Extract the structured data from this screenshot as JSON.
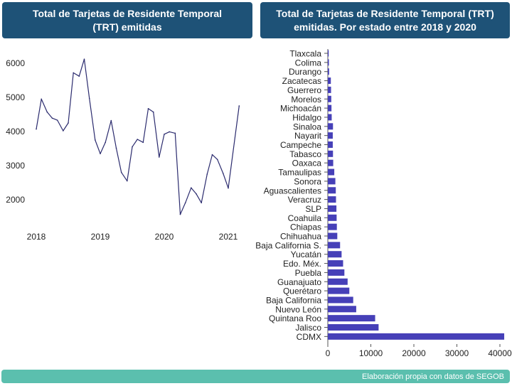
{
  "left_panel": {
    "title": "Total de Tarjetas de Residente Temporal\n(TRT) emitidas"
  },
  "right_panel": {
    "title": "Total de Tarjetas de Residente Temporal (TRT)\nemitidas. Por estado entre 2018 y 2020"
  },
  "footer": {
    "source": "Elaboración propia con datos de SEGOB"
  },
  "colors": {
    "header_bg": "#1e5277",
    "footer_bg": "#5bbfae",
    "line": "#2b2b6e",
    "bar": "#4640b8"
  },
  "chart_data": [
    {
      "type": "line",
      "title": "Total de Tarjetas de Residente Temporal (TRT) emitidas",
      "xlabel": "",
      "ylabel": "",
      "x_ticks": [
        "2018",
        "2019",
        "2020",
        "2021"
      ],
      "y_ticks": [
        2000,
        3000,
        4000,
        5000,
        6000
      ],
      "xlim": [
        2018,
        2021.17
      ],
      "ylim": [
        1400,
        6300
      ],
      "grid": false,
      "x": [
        2018.0,
        2018.08,
        2018.17,
        2018.25,
        2018.33,
        2018.42,
        2018.5,
        2018.58,
        2018.67,
        2018.75,
        2018.83,
        2018.92,
        2019.0,
        2019.08,
        2019.17,
        2019.25,
        2019.33,
        2019.42,
        2019.5,
        2019.58,
        2019.67,
        2019.75,
        2019.83,
        2019.92,
        2020.0,
        2020.08,
        2020.17,
        2020.25,
        2020.33,
        2020.42,
        2020.5,
        2020.58,
        2020.67,
        2020.75,
        2020.83,
        2020.92,
        2021.0,
        2021.17
      ],
      "values": [
        4050,
        4930,
        4550,
        4370,
        4310,
        4000,
        4230,
        5700,
        5600,
        6100,
        4950,
        3730,
        3330,
        3660,
        4300,
        3490,
        2780,
        2530,
        3530,
        3750,
        3660,
        4650,
        4550,
        3230,
        3900,
        3970,
        3930,
        1550,
        1890,
        2330,
        2150,
        1890,
        2730,
        3300,
        3160,
        2750,
        2320,
        4730
      ]
    },
    {
      "type": "bar",
      "orientation": "horizontal",
      "title": "Total de Tarjetas de Residente Temporal (TRT) emitidas. Por estado entre 2018 y 2020",
      "xlabel": "",
      "ylabel": "",
      "x_ticks": [
        0,
        10000,
        20000,
        30000,
        40000
      ],
      "xlim": [
        0,
        41500
      ],
      "grid": false,
      "categories": [
        "Tlaxcala",
        "Colima",
        "Durango",
        "Zacatecas",
        "Guerrero",
        "Morelos",
        "Michoacán",
        "Hidalgo",
        "Sinaloa",
        "Nayarit",
        "Campeche",
        "Tabasco",
        "Oaxaca",
        "Tamaulipas",
        "Sonora",
        "Aguascalientes",
        "Veracruz",
        "SLP",
        "Coahuila",
        "Chiapas",
        "Chihuahua",
        "Baja California S.",
        "Yucatán",
        "Edo. Méx.",
        "Puebla",
        "Guanajuato",
        "Querétaro",
        "Baja California",
        "Nuevo León",
        "Quintana Roo",
        "Jalisco",
        "CDMX"
      ],
      "values": [
        200,
        250,
        300,
        700,
        750,
        800,
        850,
        900,
        1200,
        1150,
        1150,
        1200,
        1250,
        1500,
        1750,
        1850,
        1900,
        2000,
        2050,
        2100,
        2200,
        2850,
        3200,
        3550,
        3850,
        4600,
        5000,
        5900,
        6600,
        11000,
        11800,
        41000
      ]
    }
  ]
}
